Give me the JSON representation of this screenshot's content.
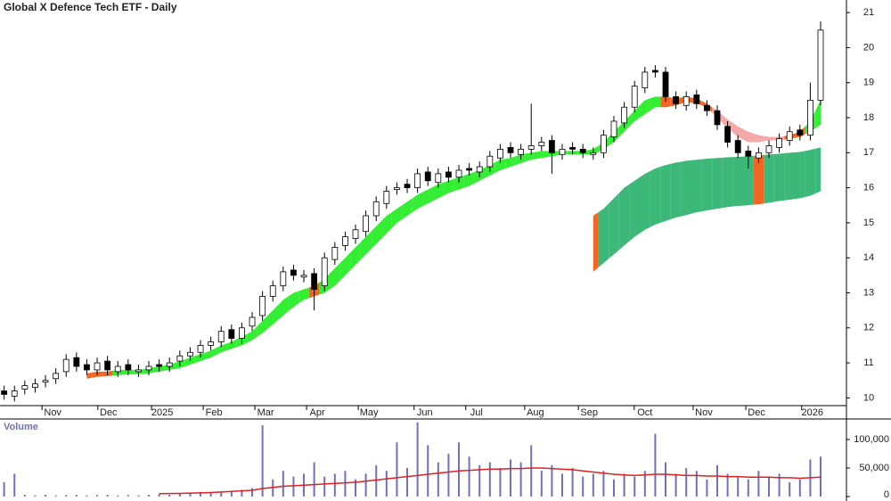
{
  "chart_data": [
    {
      "type": "candlestick",
      "title": "Global X Defence Tech ETF - Daily",
      "open": [
        10.2,
        10.05,
        10.25,
        10.3,
        10.45,
        10.55,
        10.75,
        11.15,
        10.95,
        10.8,
        11.05,
        10.75,
        10.95,
        10.75,
        10.8,
        10.95,
        10.9,
        11.05,
        11.2,
        11.3,
        11.5,
        11.6,
        11.95,
        11.7,
        12.05,
        12.35,
        12.9,
        13.2,
        13.65,
        13.45,
        13.55,
        13.2,
        13.95,
        14.35,
        14.55,
        14.75,
        15.2,
        15.55,
        15.95,
        16.1,
        16.0,
        16.45,
        16.15,
        16.45,
        16.3,
        16.55,
        16.45,
        16.6,
        16.85,
        17.15,
        16.95,
        17.1,
        17.2,
        17.35,
        16.95,
        17.15,
        17.1,
        16.95,
        17.0,
        17.45,
        17.85,
        18.3,
        18.85,
        19.35,
        19.3,
        18.6,
        18.35,
        18.65,
        18.35,
        18.2,
        17.75,
        17.35,
        17.05,
        16.85,
        17.0,
        17.15,
        17.35,
        17.65,
        17.5,
        18.5
      ],
      "high": [
        10.35,
        10.35,
        10.5,
        10.55,
        10.65,
        10.85,
        11.25,
        11.3,
        11.1,
        11.15,
        11.2,
        11.05,
        11.1,
        10.95,
        11.05,
        11.1,
        11.15,
        11.35,
        11.45,
        11.65,
        11.75,
        12.05,
        12.1,
        12.15,
        12.45,
        13.05,
        13.35,
        13.75,
        13.8,
        13.65,
        13.7,
        14.15,
        14.45,
        14.75,
        14.95,
        15.35,
        15.75,
        16.05,
        16.15,
        16.25,
        16.55,
        16.6,
        16.55,
        16.6,
        16.65,
        16.7,
        16.75,
        17.05,
        17.25,
        17.3,
        17.25,
        18.4,
        17.45,
        17.5,
        17.25,
        17.3,
        17.25,
        17.15,
        17.65,
        18.05,
        18.45,
        19.05,
        19.45,
        19.5,
        19.45,
        18.75,
        18.75,
        18.8,
        18.5,
        18.35,
        17.9,
        17.5,
        17.2,
        17.15,
        17.35,
        17.55,
        17.75,
        17.8,
        19.0,
        20.75
      ],
      "low": [
        9.95,
        9.9,
        10.1,
        10.15,
        10.3,
        10.4,
        10.6,
        10.75,
        10.65,
        10.65,
        10.65,
        10.6,
        10.65,
        10.6,
        10.65,
        10.75,
        10.75,
        10.9,
        11.05,
        11.15,
        11.35,
        11.45,
        11.55,
        11.55,
        11.9,
        12.2,
        12.75,
        13.05,
        13.35,
        13.3,
        12.5,
        13.05,
        13.8,
        14.2,
        14.4,
        14.6,
        15.05,
        15.4,
        15.8,
        15.85,
        15.85,
        16.05,
        16.0,
        16.15,
        16.15,
        16.35,
        16.3,
        16.45,
        16.7,
        16.85,
        16.8,
        16.95,
        17.05,
        16.4,
        16.8,
        16.95,
        16.85,
        16.8,
        16.85,
        17.3,
        17.7,
        18.15,
        18.7,
        19.15,
        18.45,
        18.25,
        18.2,
        18.25,
        18.05,
        17.65,
        17.15,
        16.85,
        16.55,
        16.7,
        16.85,
        17.0,
        17.2,
        17.35,
        17.35,
        18.35
      ],
      "close": [
        10.1,
        10.2,
        10.35,
        10.4,
        10.5,
        10.7,
        11.1,
        10.9,
        10.8,
        11.0,
        10.8,
        10.9,
        10.8,
        10.8,
        10.9,
        10.9,
        11.0,
        11.2,
        11.3,
        11.5,
        11.6,
        11.9,
        11.7,
        12.0,
        12.3,
        12.9,
        13.2,
        13.6,
        13.5,
        13.5,
        13.1,
        14.0,
        14.3,
        14.6,
        14.8,
        15.2,
        15.6,
        15.9,
        16.0,
        16.0,
        16.4,
        16.2,
        16.4,
        16.3,
        16.5,
        16.5,
        16.6,
        16.9,
        17.1,
        17.0,
        17.1,
        17.2,
        17.3,
        17.0,
        17.1,
        17.1,
        17.0,
        17.0,
        17.5,
        17.9,
        18.3,
        18.9,
        19.3,
        19.3,
        18.6,
        18.4,
        18.6,
        18.4,
        18.2,
        17.8,
        17.3,
        17.0,
        16.9,
        17.0,
        17.2,
        17.4,
        17.6,
        17.5,
        18.5,
        20.5
      ],
      "up_color": "#ffffff",
      "down_color": "#000000",
      "bands": [
        {
          "color": [
            "#33ee33"
          ],
          "colors": [
            null,
            null,
            null,
            null,
            null,
            null,
            null,
            null,
            "#f26522",
            "#f26522",
            "#f26522",
            "#33ee33",
            "#33ee33",
            "#33ee33",
            "#33ee33",
            "#33ee33",
            "#33ee33",
            "#33ee33",
            "#33ee33",
            "#33ee33",
            "#33ee33",
            "#33ee33",
            "#33ee33",
            "#33ee33",
            "#33ee33",
            "#33ee33",
            "#33ee33",
            "#33ee33",
            "#33ee33",
            "#33ee33",
            "#f26522",
            "#33ee33",
            "#33ee33",
            "#33ee33",
            "#33ee33",
            "#33ee33",
            "#33ee33",
            "#33ee33",
            "#33ee33",
            "#33ee33",
            "#33ee33",
            "#33ee33",
            "#33ee33",
            "#33ee33",
            "#33ee33",
            "#33ee33",
            "#33ee33",
            "#33ee33",
            "#33ee33",
            "#33ee33",
            "#33ee33",
            "#33ee33",
            "#33ee33",
            "#33ee33",
            "#33ee33",
            "#33ee33",
            "#33ee33",
            "#33ee33",
            "#33ee33",
            "#33ee33",
            "#33ee33",
            "#33ee33",
            "#33ee33",
            "#33ee33",
            "#f26522",
            "#f26522",
            "#f26522",
            "#f26522",
            "#f26522",
            "#f4a9a8",
            "#f4a9a8",
            "#f4a9a8",
            "#f4a9a8",
            "#f4a9a8",
            "#f4a9a8",
            "#f4a9a8",
            "#f26522",
            "#f26522",
            "#33ee33",
            "#33ee33"
          ],
          "upper": [
            null,
            null,
            null,
            null,
            null,
            null,
            null,
            null,
            10.7,
            10.75,
            10.75,
            10.8,
            10.8,
            10.8,
            10.85,
            10.9,
            10.95,
            11.05,
            11.15,
            11.25,
            11.35,
            11.5,
            11.6,
            11.75,
            11.9,
            12.2,
            12.5,
            12.8,
            13.0,
            13.1,
            13.2,
            13.4,
            13.7,
            14.0,
            14.3,
            14.6,
            14.9,
            15.2,
            15.4,
            15.6,
            15.8,
            15.95,
            16.1,
            16.2,
            16.3,
            16.4,
            16.5,
            16.65,
            16.8,
            16.85,
            16.95,
            17.0,
            17.05,
            17.05,
            17.05,
            17.05,
            17.05,
            17.1,
            17.3,
            17.6,
            17.9,
            18.2,
            18.5,
            18.6,
            18.6,
            18.55,
            18.6,
            18.55,
            18.4,
            18.2,
            17.95,
            17.75,
            17.6,
            17.5,
            17.45,
            17.45,
            17.5,
            17.6,
            17.9,
            18.5
          ],
          "lower": [
            null,
            null,
            null,
            null,
            null,
            null,
            null,
            null,
            10.55,
            10.6,
            10.62,
            10.65,
            10.67,
            10.68,
            10.7,
            10.75,
            10.8,
            10.85,
            10.95,
            11.05,
            11.15,
            11.3,
            11.4,
            11.5,
            11.65,
            11.85,
            12.1,
            12.35,
            12.6,
            12.8,
            12.9,
            13.0,
            13.2,
            13.5,
            13.8,
            14.1,
            14.4,
            14.7,
            15.0,
            15.2,
            15.4,
            15.55,
            15.7,
            15.85,
            15.95,
            16.05,
            16.2,
            16.35,
            16.5,
            16.6,
            16.7,
            16.8,
            16.85,
            16.9,
            16.95,
            16.95,
            16.95,
            16.95,
            17.1,
            17.3,
            17.6,
            17.9,
            18.1,
            18.3,
            18.3,
            18.35,
            18.45,
            18.4,
            18.3,
            18.0,
            17.7,
            17.45,
            17.3,
            17.3,
            17.35,
            17.35,
            17.4,
            17.45,
            17.6,
            17.8
          ]
        },
        {
          "colors": [
            null,
            null,
            null,
            null,
            null,
            null,
            null,
            null,
            null,
            null,
            null,
            null,
            null,
            null,
            null,
            null,
            null,
            null,
            null,
            null,
            null,
            null,
            null,
            null,
            null,
            null,
            null,
            null,
            null,
            null,
            null,
            null,
            null,
            null,
            null,
            null,
            null,
            null,
            null,
            null,
            null,
            null,
            null,
            null,
            null,
            null,
            null,
            null,
            null,
            null,
            null,
            null,
            null,
            null,
            null,
            null,
            null,
            "#f26522",
            "#3cb878",
            "#3cb878",
            "#3cb878",
            "#3cb878",
            "#3cb878",
            "#3cb878",
            "#3cb878",
            "#3cb878",
            "#3cb878",
            "#3cb878",
            "#3cb878",
            "#3cb878",
            "#3cb878",
            "#3cb878",
            "#3cb878",
            "#f26522",
            "#3cb878",
            "#3cb878",
            "#3cb878",
            "#3cb878",
            "#3cb878",
            "#3cb878"
          ],
          "upper": [
            null,
            null,
            null,
            null,
            null,
            null,
            null,
            null,
            null,
            null,
            null,
            null,
            null,
            null,
            null,
            null,
            null,
            null,
            null,
            null,
            null,
            null,
            null,
            null,
            null,
            null,
            null,
            null,
            null,
            null,
            null,
            null,
            null,
            null,
            null,
            null,
            null,
            null,
            null,
            null,
            null,
            null,
            null,
            null,
            null,
            null,
            null,
            null,
            null,
            null,
            null,
            null,
            null,
            null,
            null,
            null,
            null,
            15.2,
            15.4,
            15.7,
            16.0,
            16.2,
            16.4,
            16.55,
            16.65,
            16.72,
            16.77,
            16.8,
            16.83,
            16.85,
            16.87,
            16.88,
            16.9,
            16.92,
            16.95,
            16.97,
            17.0,
            17.02,
            17.08,
            17.15
          ],
          "lower": [
            null,
            null,
            null,
            null,
            null,
            null,
            null,
            null,
            null,
            null,
            null,
            null,
            null,
            null,
            null,
            null,
            null,
            null,
            null,
            null,
            null,
            null,
            null,
            null,
            null,
            null,
            null,
            null,
            null,
            null,
            null,
            null,
            null,
            null,
            null,
            null,
            null,
            null,
            null,
            null,
            null,
            null,
            null,
            null,
            null,
            null,
            null,
            null,
            null,
            null,
            null,
            null,
            null,
            null,
            null,
            null,
            null,
            13.6,
            13.85,
            14.1,
            14.35,
            14.6,
            14.8,
            14.95,
            15.05,
            15.15,
            15.22,
            15.3,
            15.35,
            15.4,
            15.45,
            15.48,
            15.5,
            15.53,
            15.57,
            15.62,
            15.66,
            15.7,
            15.77,
            15.9
          ]
        }
      ],
      "xlim": [
        -0.4,
        81.5
      ],
      "xticks": [
        {
          "value": 4.7,
          "label": "Nov"
        },
        {
          "value": 10.1,
          "label": "Dec"
        },
        {
          "value": 15.3,
          "label": "2025"
        },
        {
          "value": 20.3,
          "label": "Feb"
        },
        {
          "value": 25.3,
          "label": "Mar"
        },
        {
          "value": 30.3,
          "label": "Apr"
        },
        {
          "value": 35.3,
          "label": "May"
        },
        {
          "value": 40.7,
          "label": "Jun"
        },
        {
          "value": 45.7,
          "label": "Jul"
        },
        {
          "value": 51.4,
          "label": "Aug"
        },
        {
          "value": 56.6,
          "label": "Sep"
        },
        {
          "value": 62,
          "label": "Oct"
        },
        {
          "value": 67.7,
          "label": "Nov"
        },
        {
          "value": 72.8,
          "label": "Dec"
        },
        {
          "value": 78.2,
          "label": "2026"
        }
      ],
      "ylim": [
        9.78,
        21.36
      ],
      "yticks": [
        10,
        11,
        12,
        13,
        14,
        15,
        16,
        17,
        18,
        19,
        20,
        21
      ]
    },
    {
      "type": "volume",
      "title": "Volume",
      "color": "#7070c0",
      "ma_color": "#dd2222",
      "values": [
        25000,
        40000,
        3000,
        2000,
        3000,
        2000,
        2500,
        3000,
        2000,
        2500,
        3000,
        2000,
        2500,
        2000,
        3000,
        4000,
        3000,
        5000,
        6000,
        8000,
        7000,
        9000,
        10000,
        12000,
        15000,
        125000,
        30000,
        45000,
        35000,
        40000,
        60000,
        35000,
        40000,
        45000,
        30000,
        40000,
        55000,
        45000,
        95000,
        50000,
        130000,
        90000,
        60000,
        75000,
        95000,
        70000,
        55000,
        60000,
        50000,
        65000,
        60000,
        90000,
        45000,
        55000,
        40000,
        50000,
        35000,
        40000,
        45000,
        30000,
        40000,
        35000,
        45000,
        110000,
        60000,
        40000,
        50000,
        45000,
        30000,
        55000,
        40000,
        35000,
        30000,
        45000,
        35000,
        40000,
        25000,
        30000,
        65000,
        70000
      ],
      "ma": [
        null,
        null,
        null,
        null,
        null,
        null,
        null,
        null,
        null,
        null,
        null,
        null,
        null,
        null,
        null,
        5000,
        5200,
        5500,
        6000,
        6500,
        7000,
        8000,
        9000,
        10000,
        11000,
        14000,
        16000,
        18000,
        19000,
        20000,
        21000,
        22000,
        23000,
        24000,
        25000,
        27000,
        29000,
        31000,
        33000,
        35000,
        37000,
        39000,
        41000,
        43000,
        45000,
        46000,
        47000,
        48000,
        48000,
        49000,
        49000,
        50000,
        50000,
        49000,
        48000,
        47000,
        45000,
        43000,
        41000,
        39000,
        38000,
        37000,
        38000,
        39000,
        39000,
        38000,
        37000,
        37000,
        36000,
        36000,
        35000,
        35000,
        34000,
        34000,
        34000,
        33000,
        33000,
        32000,
        33000,
        34000
      ],
      "ylim": [
        0,
        136000
      ],
      "yticks": [
        0,
        {
          "value": 50000,
          "label": "50,000"
        },
        {
          "value": 100000,
          "label": "100,000"
        }
      ]
    }
  ]
}
